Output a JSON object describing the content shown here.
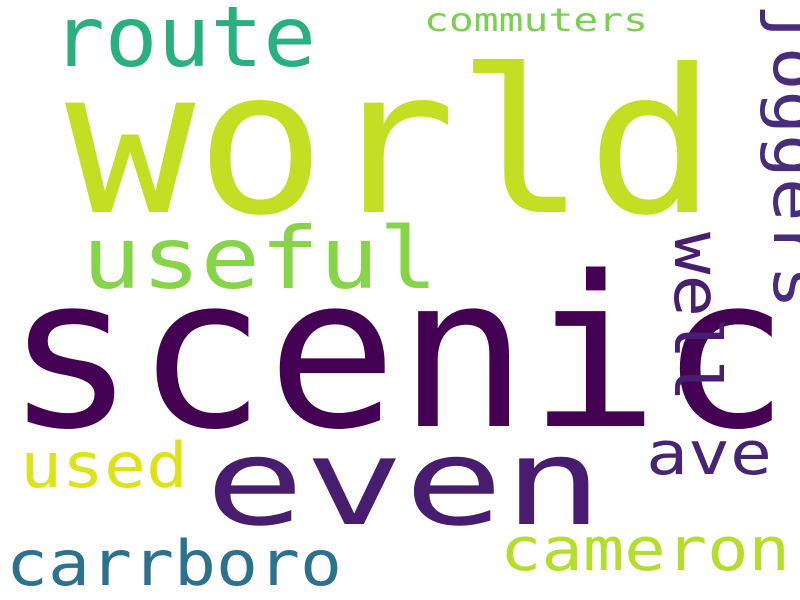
{
  "words": [
    {
      "text": "scenic",
      "color": "#440154",
      "orientation": "horizontal"
    },
    {
      "text": "world",
      "color": "#c2df23",
      "orientation": "horizontal"
    },
    {
      "text": "even",
      "color": "#481c6e",
      "orientation": "horizontal"
    },
    {
      "text": "useful",
      "color": "#86d549",
      "orientation": "horizontal"
    },
    {
      "text": "route",
      "color": "#2ab07f",
      "orientation": "horizontal"
    },
    {
      "text": "cameron",
      "color": "#b5de2b",
      "orientation": "horizontal"
    },
    {
      "text": "carrboro",
      "color": "#2c718e",
      "orientation": "horizontal"
    },
    {
      "text": "used",
      "color": "#dde318",
      "orientation": "horizontal"
    },
    {
      "text": "ave",
      "color": "#482475",
      "orientation": "horizontal"
    },
    {
      "text": "commuters",
      "color": "#7ad151",
      "orientation": "horizontal"
    },
    {
      "text": "joggers",
      "color": "#472d7b",
      "orientation": "vertical"
    },
    {
      "text": "well",
      "color": "#481f70",
      "orientation": "vertical"
    }
  ]
}
